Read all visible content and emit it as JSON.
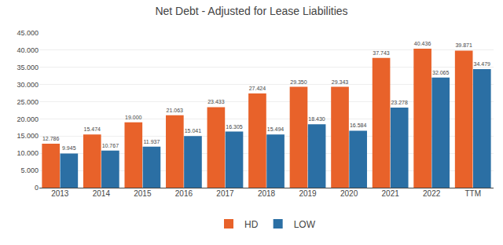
{
  "chart_data": {
    "type": "bar",
    "title": "Net Debt - Adjusted for Lease Liabilities",
    "categories": [
      "2013",
      "2014",
      "2015",
      "2016",
      "2017",
      "2018",
      "2019",
      "2020",
      "2021",
      "2022",
      "TTM"
    ],
    "series": [
      {
        "name": "HD",
        "color": "#E8622A",
        "values": [
          12786,
          15474,
          19000,
          21063,
          23433,
          27424,
          29350,
          29343,
          37743,
          40436,
          39871
        ],
        "value_labels": [
          "12.786",
          "15.474",
          "19.000",
          "21.063",
          "23.433",
          "27.424",
          "29.350",
          "29.343",
          "37.743",
          "40.436",
          "39.871"
        ]
      },
      {
        "name": "LOW",
        "color": "#2B6FA4",
        "values": [
          9945,
          10767,
          11937,
          15041,
          16305,
          15494,
          18430,
          16584,
          23278,
          32065,
          34479
        ],
        "value_labels": [
          "9.945",
          "10.767",
          "11.937",
          "15.041",
          "16.305",
          "15.494",
          "18.430",
          "16.584",
          "23.278",
          "32.065",
          "34.479"
        ]
      }
    ],
    "ylim": [
      0,
      45000
    ],
    "yticks": [
      0,
      {
        "value": 5000,
        "label": "5.000"
      },
      {
        "value": 10000,
        "label": "10.000"
      },
      {
        "value": 15000,
        "label": "15.000"
      },
      {
        "value": 20000,
        "label": "20.000"
      },
      {
        "value": 25000,
        "label": "25.000"
      },
      {
        "value": 30000,
        "label": "30.000"
      },
      {
        "value": 35000,
        "label": "35.000"
      },
      {
        "value": 40000,
        "label": "40.000"
      },
      {
        "value": 45000,
        "label": "45.000"
      }
    ],
    "grid": true,
    "legend": "bottom",
    "data_labels": true
  }
}
